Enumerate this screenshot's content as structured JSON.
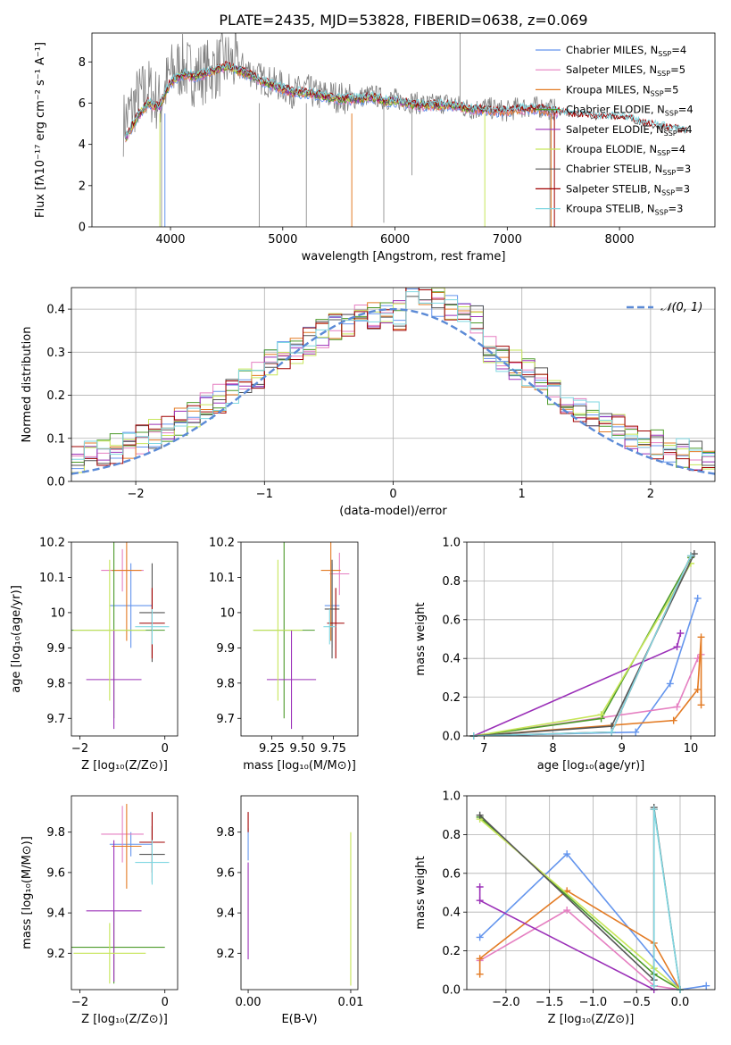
{
  "chart_data": [
    {
      "panel": "spectrum",
      "type": "line",
      "title": "PLATE=2435, MJD=53828, FIBERID=0638, z=0.069",
      "xlabel": "wavelength [Angstrom, rest frame]",
      "ylabel": "Flux [fλ10⁻¹⁷ erg cm⁻² s⁻¹ A⁻¹]",
      "xlim": [
        3300,
        8850
      ],
      "ylim": [
        0,
        9.4
      ],
      "xticks": [
        4000,
        5000,
        6000,
        7000,
        8000
      ],
      "yticks": [
        0,
        2,
        4,
        6,
        8
      ],
      "grid": false,
      "legend": "top-right",
      "data_color": "#808080",
      "data_series": {
        "x": [
          3580,
          3700,
          3800,
          3900,
          4000,
          4100,
          4200,
          4300,
          4400,
          4500,
          4600,
          4700,
          4800,
          4900,
          5000,
          5100,
          5200,
          5300,
          5400,
          5500,
          5600,
          5700,
          5800,
          5900,
          6000,
          6100,
          6200,
          6300,
          6400,
          6500,
          6600,
          6700,
          6800,
          6900,
          7000,
          7100,
          7200,
          7300,
          7400,
          7500,
          7600,
          7700,
          7800,
          7900,
          8000,
          8100,
          8200,
          8300,
          8400,
          8500,
          8600
        ],
        "y": [
          5.0,
          6.2,
          6.7,
          6.0,
          7.4,
          7.8,
          7.4,
          7.5,
          7.7,
          8.0,
          7.8,
          7.6,
          7.2,
          7.0,
          6.8,
          6.5,
          6.7,
          6.4,
          6.4,
          6.3,
          6.2,
          6.3,
          6.4,
          6.2,
          6.2,
          6.1,
          6.0,
          5.9,
          6.0,
          6.0,
          5.8,
          5.7,
          5.8,
          5.7,
          5.6,
          5.8,
          5.8,
          5.8,
          5.7,
          5.6,
          5.4,
          5.5,
          5.4,
          5.4,
          5.5,
          5.3,
          5.1,
          5.0,
          4.9,
          4.8,
          4.6
        ]
      },
      "model_x": [
        3600,
        3700,
        3800,
        3900,
        4000,
        4100,
        4200,
        4300,
        4400,
        4500,
        4600,
        4700,
        4800,
        4900,
        5000,
        5100,
        5200,
        5300,
        5400,
        5500,
        5600,
        5700,
        5800,
        5900,
        6000,
        6100,
        6200,
        6300,
        6400,
        6500,
        6600,
        6700,
        6800,
        6900,
        7000,
        7100,
        7200,
        7300,
        7400,
        7500,
        7600,
        7700,
        7800,
        7900,
        8000,
        8100,
        8200,
        8300,
        8400,
        8500,
        8600
      ],
      "model_y": [
        4.3,
        5.3,
        6.0,
        5.8,
        7.0,
        7.4,
        7.3,
        7.4,
        7.6,
        7.8,
        7.6,
        7.4,
        7.1,
        6.9,
        6.7,
        6.5,
        6.5,
        6.4,
        6.3,
        6.2,
        6.2,
        6.2,
        6.3,
        6.1,
        6.1,
        6.0,
        5.9,
        5.9,
        5.9,
        5.9,
        5.8,
        5.7,
        5.7,
        5.6,
        5.6,
        5.7,
        5.7,
        5.7,
        5.6,
        5.5,
        5.4,
        5.4,
        5.3,
        5.3,
        5.3,
        5.2,
        5.0,
        4.9,
        4.8,
        4.7,
        4.6
      ],
      "series": [
        {
          "name": "Chabrier MILES, N",
          "sup": "SSP",
          "suffix": "=4",
          "color": "#6495ed",
          "xmax": 7450
        },
        {
          "name": "Salpeter MILES, N",
          "sup": "SSP",
          "suffix": "=5",
          "color": "#e57fc1",
          "xmax": 7450
        },
        {
          "name": "Kroupa MILES, N",
          "sup": "SSP",
          "suffix": "=5",
          "color": "#e37b24",
          "xmax": 7450
        },
        {
          "name": "Chabrier ELODIE, N",
          "sup": "SSP",
          "suffix": "=4",
          "color": "#4c9a2a",
          "xmax": 6800
        },
        {
          "name": "Salpeter ELODIE, N",
          "sup": "SSP",
          "suffix": "=4",
          "color": "#9b30b8",
          "xmax": 6800
        },
        {
          "name": "Kroupa ELODIE, N",
          "sup": "SSP",
          "suffix": "=4",
          "color": "#c7e65a",
          "xmax": 6800
        },
        {
          "name": "Chabrier STELIB, N",
          "sup": "SSP",
          "suffix": "=3",
          "color": "#555555",
          "xmax": 8600
        },
        {
          "name": "Salpeter STELIB, N",
          "sup": "SSP",
          "suffix": "=3",
          "color": "#a00000",
          "xmax": 8600
        },
        {
          "name": "Kroupa STELIB, N",
          "sup": "SSP",
          "suffix": "=3",
          "color": "#7fd7e1",
          "xmax": 8600
        }
      ]
    },
    {
      "panel": "residuals",
      "type": "line",
      "xlabel": "(data-model)/error",
      "ylabel": "Normed distribution",
      "xlim": [
        -2.5,
        2.5
      ],
      "ylim": [
        0,
        0.45
      ],
      "xticks": [
        -2,
        -1,
        0,
        1,
        2
      ],
      "yticks": [
        0.0,
        0.1,
        0.2,
        0.3,
        0.4
      ],
      "grid": true,
      "legend": "top-right",
      "reference": {
        "name": "𝒩(0, 1)",
        "color": "#5b8ad6"
      },
      "histogram_bins": {
        "start": -2.5,
        "width": 0.1,
        "count": 50
      }
    },
    {
      "panel": "age-vs-metallicity",
      "type": "scatter",
      "xlabel": "Z [log₁₀(Z/Z⊙)]",
      "ylabel": "age  [log₁₀(age/yr)]",
      "xlim": [
        -2.2,
        0.3
      ],
      "ylim": [
        9.65,
        10.2
      ],
      "xticks": [
        -2,
        0
      ],
      "yticks": [
        9.7,
        9.8,
        9.9,
        10.0,
        10.1,
        10.2
      ],
      "points": [
        {
          "series": "Chabrier MILES",
          "x": -0.8,
          "xerr": 0.5,
          "y": 10.02,
          "yerr": 0.12
        },
        {
          "series": "Salpeter MILES",
          "x": -1.0,
          "xerr": 0.5,
          "y": 10.12,
          "yerr": 0.06
        },
        {
          "series": "Kroupa MILES",
          "x": -0.9,
          "xerr": 0.35,
          "y": 10.12,
          "yerr": 0.2
        },
        {
          "series": "Chabrier ELODIE",
          "x": -1.2,
          "xerr": 1.2,
          "y": 9.95,
          "yerr": 0.25
        },
        {
          "series": "Salpeter ELODIE",
          "x": -1.2,
          "xerr": 0.65,
          "y": 9.81,
          "yerr": 0.14
        },
        {
          "series": "Kroupa ELODIE",
          "x": -1.3,
          "xerr": 0.85,
          "y": 9.95,
          "yerr": 0.2
        },
        {
          "series": "Chabrier STELIB",
          "x": -0.3,
          "xerr": 0.3,
          "y": 10.0,
          "yerr": 0.14
        },
        {
          "series": "Salpeter STELIB",
          "x": -0.3,
          "xerr": 0.3,
          "y": 9.97,
          "yerr": 0.1
        },
        {
          "series": "Kroupa STELIB",
          "x": -0.3,
          "xerr": 0.4,
          "y": 9.96,
          "yerr": 0.05
        }
      ]
    },
    {
      "panel": "age-vs-mass",
      "type": "scatter",
      "xlabel": "mass [log₁₀(M/M⊙)]",
      "ylabel": "",
      "xlim": [
        9.0,
        9.95
      ],
      "ylim": [
        9.65,
        10.2
      ],
      "xticks": [
        9.25,
        9.5,
        9.75
      ],
      "xticklabels": [
        "9.25",
        "9.50",
        "9.75"
      ],
      "yticks": [
        9.7,
        9.8,
        9.9,
        10.0,
        10.1,
        10.2
      ],
      "points": [
        {
          "series": "Chabrier MILES",
          "x": 9.74,
          "xerr": 0.06,
          "y": 10.02,
          "yerr": 0.12
        },
        {
          "series": "Salpeter MILES",
          "x": 9.8,
          "xerr": 0.08,
          "y": 10.11,
          "yerr": 0.06
        },
        {
          "series": "Kroupa MILES",
          "x": 9.73,
          "xerr": 0.08,
          "y": 10.12,
          "yerr": 0.2
        },
        {
          "series": "Chabrier ELODIE",
          "x": 9.35,
          "xerr": 0.25,
          "y": 9.95,
          "yerr": 0.25
        },
        {
          "series": "Salpeter ELODIE",
          "x": 9.41,
          "xerr": 0.2,
          "y": 9.81,
          "yerr": 0.14
        },
        {
          "series": "Kroupa ELODIE",
          "x": 9.3,
          "xerr": 0.2,
          "y": 9.95,
          "yerr": 0.2
        },
        {
          "series": "Chabrier STELIB",
          "x": 9.74,
          "xerr": 0.06,
          "y": 10.01,
          "yerr": 0.14
        },
        {
          "series": "Salpeter STELIB",
          "x": 9.77,
          "xerr": 0.07,
          "y": 9.97,
          "yerr": 0.1
        },
        {
          "series": "Kroupa STELIB",
          "x": 9.72,
          "xerr": 0.05,
          "y": 9.96,
          "yerr": 0.05
        }
      ]
    },
    {
      "panel": "weight-vs-age",
      "type": "line",
      "xlabel": "age  [log₁₀(age/yr)]",
      "ylabel": "mass weight",
      "xlim": [
        6.75,
        10.35
      ],
      "ylim": [
        0,
        1.0
      ],
      "xticks": [
        7,
        8,
        9,
        10
      ],
      "yticks": [
        0.0,
        0.2,
        0.4,
        0.6,
        0.8,
        1.0
      ],
      "grid": true,
      "series": [
        {
          "name": "Chabrier MILES",
          "x": [
            6.85,
            9.2,
            9.7,
            10.1
          ],
          "y": [
            0.0,
            0.02,
            0.27,
            0.71
          ]
        },
        {
          "name": "Salpeter MILES",
          "x": [
            6.85,
            9.8,
            10.1,
            10.15
          ],
          "y": [
            0.0,
            0.15,
            0.4,
            0.42
          ]
        },
        {
          "name": "Kroupa MILES",
          "x": [
            6.85,
            9.75,
            10.1,
            10.15,
            10.15
          ],
          "y": [
            0.0,
            0.08,
            0.24,
            0.51,
            0.16
          ]
        },
        {
          "name": "Chabrier ELODIE",
          "x": [
            6.85,
            8.7,
            10.0
          ],
          "y": [
            0.0,
            0.09,
            0.92
          ]
        },
        {
          "name": "Salpeter ELODIE",
          "x": [
            6.85,
            9.8,
            9.85
          ],
          "y": [
            0.0,
            0.46,
            0.53
          ]
        },
        {
          "name": "Kroupa ELODIE",
          "x": [
            6.85,
            8.7,
            10.0
          ],
          "y": [
            0.0,
            0.11,
            0.89
          ]
        },
        {
          "name": "Chabrier STELIB",
          "x": [
            6.85,
            8.85,
            10.05
          ],
          "y": [
            0.0,
            0.05,
            0.94
          ]
        },
        {
          "name": "Salpeter STELIB",
          "x": [
            6.85,
            8.85,
            10.0
          ],
          "y": [
            0.0,
            0.02,
            0.93
          ]
        },
        {
          "name": "Kroupa STELIB",
          "x": [
            6.85,
            8.85,
            10.0
          ],
          "y": [
            0.0,
            0.02,
            0.93
          ]
        }
      ]
    },
    {
      "panel": "mass-vs-metallicity",
      "type": "scatter",
      "xlabel": "Z [log₁₀(Z/Z⊙)]",
      "ylabel": "mass [log₁₀(M/M⊙)]",
      "xlim": [
        -2.2,
        0.3
      ],
      "ylim": [
        9.02,
        9.98
      ],
      "xticks": [
        -2,
        0
      ],
      "yticks": [
        9.2,
        9.4,
        9.6,
        9.8
      ],
      "points": [
        {
          "series": "Chabrier MILES",
          "x": -0.8,
          "xerr": 0.5,
          "y": 9.74,
          "yerr": 0.06
        },
        {
          "series": "Salpeter MILES",
          "x": -1.0,
          "xerr": 0.5,
          "y": 9.79,
          "yerr": 0.14
        },
        {
          "series": "Kroupa MILES",
          "x": -0.9,
          "xerr": 0.35,
          "y": 9.73,
          "yerr": 0.21
        },
        {
          "series": "Chabrier ELODIE",
          "x": -1.2,
          "xerr": 1.2,
          "y": 9.23,
          "yerr": 0.18
        },
        {
          "series": "Salpeter ELODIE",
          "x": -1.2,
          "xerr": 0.65,
          "y": 9.41,
          "yerr": 0.35
        },
        {
          "series": "Kroupa ELODIE",
          "x": -1.3,
          "xerr": 0.85,
          "y": 9.2,
          "yerr": 0.15
        },
        {
          "series": "Chabrier STELIB",
          "x": -0.3,
          "xerr": 0.3,
          "y": 9.69,
          "yerr": 0.14
        },
        {
          "series": "Salpeter STELIB",
          "x": -0.3,
          "xerr": 0.3,
          "y": 9.75,
          "yerr": 0.15
        },
        {
          "series": "Kroupa STELIB",
          "x": -0.3,
          "xerr": 0.4,
          "y": 9.65,
          "yerr": 0.11
        }
      ]
    },
    {
      "panel": "mass-vs-ebv",
      "type": "scatter",
      "xlabel": "E(B-V)",
      "ylabel": "",
      "xlim": [
        -0.0007,
        0.0107
      ],
      "ylim": [
        9.02,
        9.98
      ],
      "xticks": [
        0.0,
        0.01
      ],
      "xticklabels": [
        "0.00",
        "0.01"
      ],
      "yticks": [
        9.2,
        9.4,
        9.6,
        9.8
      ],
      "points": [
        {
          "series": "Salpeter ELODIE",
          "x": 0.0,
          "y": 9.41,
          "yerr": 0.24
        },
        {
          "series": "Chabrier MILES",
          "x": 0.0,
          "y": 9.74,
          "yerr": 0.08
        },
        {
          "series": "Salpeter STELIB",
          "x": 0.0,
          "y": 9.85,
          "yerr": 0.05
        },
        {
          "series": "Kroupa ELODIE",
          "x": 0.01,
          "y": 9.42,
          "yerr": 0.38
        }
      ]
    },
    {
      "panel": "weight-vs-metallicity",
      "type": "line",
      "xlabel": "Z [log₁₀(Z/Z⊙)]",
      "ylabel": "mass weight",
      "xlim": [
        -2.45,
        0.4
      ],
      "ylim": [
        0,
        1.0
      ],
      "xticks": [
        -2.0,
        -1.5,
        -1.0,
        -0.5,
        0.0
      ],
      "xticklabels": [
        "−2.0",
        "−1.5",
        "−1.0",
        "−0.5",
        "0.0"
      ],
      "yticks": [
        0.0,
        0.2,
        0.4,
        0.6,
        0.8,
        1.0
      ],
      "grid": true,
      "series": [
        {
          "name": "Chabrier MILES",
          "x": [
            -2.3,
            -1.3,
            0.0,
            0.3
          ],
          "y": [
            0.27,
            0.7,
            0.0,
            0.02
          ]
        },
        {
          "name": "Salpeter MILES",
          "x": [
            -2.3,
            -1.3,
            -0.3,
            0.0
          ],
          "y": [
            0.15,
            0.41,
            0.02,
            0.0
          ]
        },
        {
          "name": "Kroupa MILES",
          "x": [
            -2.3,
            -2.3,
            -1.3,
            -0.3,
            0.0
          ],
          "y": [
            0.08,
            0.16,
            0.51,
            0.24,
            0.0
          ]
        },
        {
          "name": "Chabrier ELODIE",
          "x": [
            -2.3,
            -0.3,
            0.0
          ],
          "y": [
            0.89,
            0.08,
            0.0
          ]
        },
        {
          "name": "Salpeter ELODIE",
          "x": [
            -2.3,
            -2.3,
            -0.3,
            0.0
          ],
          "y": [
            0.53,
            0.46,
            0.0,
            0.0
          ]
        },
        {
          "name": "Kroupa ELODIE",
          "x": [
            -2.3,
            -0.3,
            0.0
          ],
          "y": [
            0.88,
            0.11,
            0.0
          ]
        },
        {
          "name": "Chabrier STELIB",
          "x": [
            -2.3,
            -0.3,
            -0.3,
            0.0
          ],
          "y": [
            0.9,
            0.05,
            0.94,
            0.0
          ]
        },
        {
          "name": "Salpeter STELIB",
          "x": [
            -0.3,
            -0.3
          ],
          "y": [
            0.02,
            0.93
          ]
        },
        {
          "name": "Kroupa STELIB",
          "x": [
            -0.3,
            -0.3,
            0.0
          ],
          "y": [
            0.02,
            0.93,
            0.0
          ]
        }
      ]
    }
  ]
}
